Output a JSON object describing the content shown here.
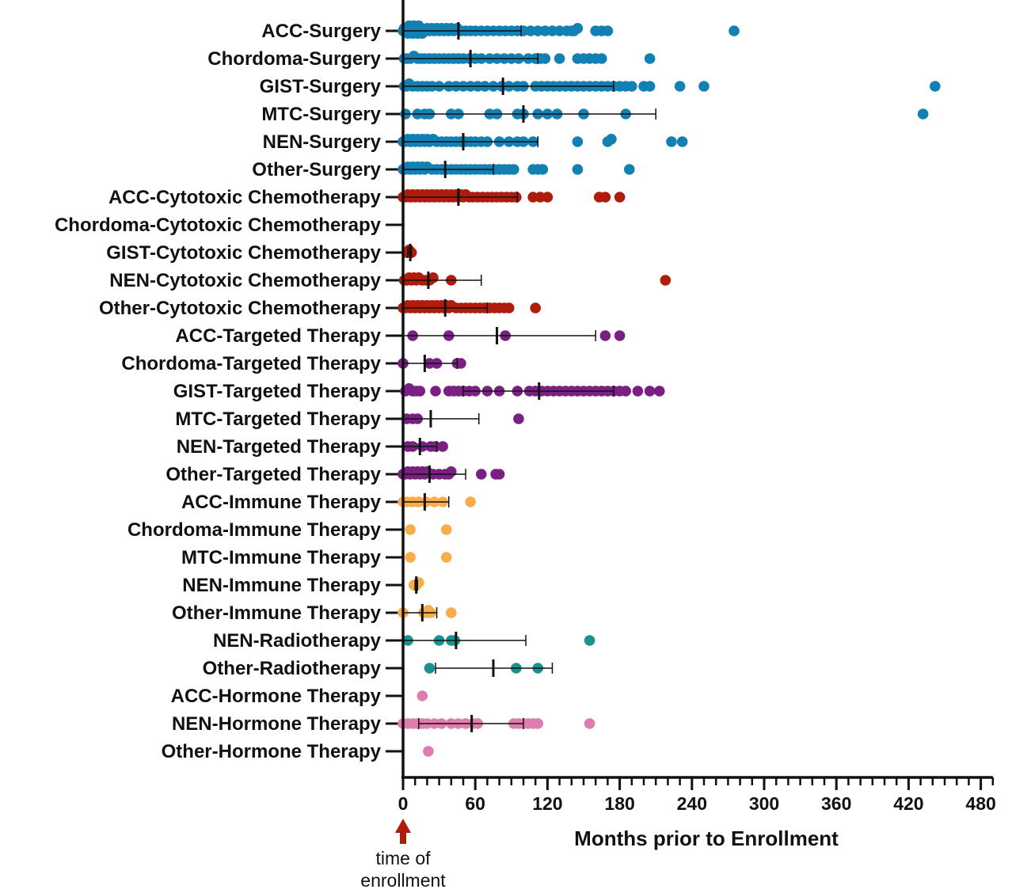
{
  "chart_data": {
    "type": "scatter",
    "subtype": "horizontal-dot-plot-with-median-and-iqr",
    "xlabel": "Months prior to Enrollment",
    "xlim": [
      0,
      490
    ],
    "xticks": [
      0,
      60,
      120,
      180,
      240,
      300,
      360,
      420,
      480
    ],
    "xticks_minor_step": 10,
    "grid": false,
    "legend": "none",
    "annotation": {
      "text_line1": "time of",
      "text_line2": "enrollment",
      "x": 0,
      "color": "#b01c0c"
    },
    "colors": {
      "Surgery": "#1380b4",
      "Cytotoxic Chemotherapy": "#b01c0c",
      "Targeted Therapy": "#7b2083",
      "Immune Therapy": "#f9ad4a",
      "Radiotherapy": "#1a9390",
      "Hormone Therapy": "#dd7eaf"
    },
    "series": [
      {
        "name": "ACC-Surgery",
        "therapy": "Surgery",
        "median": 46,
        "q1": 0,
        "q3": 98,
        "values": [
          0,
          1,
          2,
          3,
          4,
          5,
          6,
          7,
          8,
          9,
          10,
          11,
          12,
          13,
          14,
          15,
          16,
          18,
          20,
          22,
          24,
          26,
          28,
          30,
          32,
          34,
          36,
          38,
          40,
          42,
          45,
          48,
          52,
          56,
          60,
          65,
          70,
          75,
          80,
          85,
          90,
          95,
          100,
          106,
          112,
          118,
          124,
          130,
          136,
          140,
          142,
          145,
          160,
          165,
          170,
          275
        ]
      },
      {
        "name": "Chordoma-Surgery",
        "therapy": "Surgery",
        "median": 56,
        "q1": 0,
        "q3": 112,
        "values": [
          1,
          3,
          6,
          9,
          12,
          15,
          18,
          22,
          26,
          30,
          34,
          38,
          42,
          46,
          50,
          55,
          60,
          65,
          72,
          78,
          84,
          90,
          96,
          104,
          110,
          114,
          118,
          130,
          145,
          150,
          155,
          160,
          165,
          205
        ]
      },
      {
        "name": "GIST-Surgery",
        "therapy": "Surgery",
        "median": 83,
        "q1": 0,
        "q3": 175,
        "values": [
          1,
          3,
          5,
          8,
          12,
          16,
          20,
          24,
          30,
          38,
          44,
          50,
          56,
          62,
          68,
          75,
          82,
          88,
          95,
          100,
          110,
          115,
          120,
          125,
          130,
          135,
          140,
          145,
          150,
          155,
          160,
          165,
          170,
          175,
          180,
          185,
          190,
          200,
          205,
          230,
          250,
          442
        ]
      },
      {
        "name": "MTC-Surgery",
        "therapy": "Surgery",
        "median": 100,
        "q1": 0,
        "q3": 210,
        "values": [
          2,
          12,
          18,
          22,
          40,
          46,
          72,
          78,
          95,
          100,
          112,
          120,
          128,
          150,
          185,
          432
        ]
      },
      {
        "name": "NEN-Surgery",
        "therapy": "Surgery",
        "median": 50,
        "q1": 0,
        "q3": 112,
        "values": [
          0,
          2,
          4,
          6,
          8,
          10,
          12,
          14,
          16,
          18,
          20,
          22,
          25,
          28,
          32,
          36,
          40,
          44,
          48,
          52,
          56,
          60,
          65,
          70,
          80,
          88,
          95,
          100,
          108,
          145,
          170,
          173,
          223,
          232
        ]
      },
      {
        "name": "Other-Surgery",
        "therapy": "Surgery",
        "median": 35,
        "q1": 0,
        "q3": 75,
        "values": [
          0,
          2,
          4,
          6,
          8,
          10,
          12,
          14,
          16,
          18,
          20,
          24,
          28,
          32,
          36,
          40,
          44,
          48,
          52,
          56,
          60,
          64,
          68,
          72,
          76,
          80,
          84,
          88,
          92,
          108,
          112,
          116,
          145,
          188
        ]
      },
      {
        "name": "ACC-Cytotoxic Chemotherapy",
        "therapy": "Cytotoxic Chemotherapy",
        "median": 46,
        "q1": 0,
        "q3": 95,
        "values": [
          0,
          2,
          4,
          6,
          8,
          10,
          12,
          14,
          16,
          18,
          20,
          22,
          24,
          26,
          28,
          30,
          32,
          34,
          36,
          38,
          40,
          42,
          44,
          46,
          48,
          50,
          52,
          55,
          58,
          62,
          66,
          70,
          74,
          78,
          82,
          86,
          90,
          94,
          108,
          114,
          120,
          163,
          168,
          180
        ]
      },
      {
        "name": "Chordoma-Cytotoxic Chemotherapy",
        "therapy": "Cytotoxic Chemotherapy",
        "values": []
      },
      {
        "name": "GIST-Cytotoxic Chemotherapy",
        "therapy": "Cytotoxic Chemotherapy",
        "median": 6,
        "q1": 4,
        "q3": 7,
        "values": [
          3,
          5,
          7
        ]
      },
      {
        "name": "NEN-Cytotoxic Chemotherapy",
        "therapy": "Cytotoxic Chemotherapy",
        "median": 21,
        "q1": 0,
        "q3": 65,
        "values": [
          1,
          3,
          5,
          7,
          9,
          11,
          13,
          16,
          19,
          22,
          25,
          40,
          218
        ]
      },
      {
        "name": "Other-Cytotoxic Chemotherapy",
        "therapy": "Cytotoxic Chemotherapy",
        "median": 35,
        "q1": 0,
        "q3": 70,
        "values": [
          0,
          2,
          4,
          6,
          8,
          10,
          12,
          14,
          16,
          18,
          20,
          22,
          24,
          26,
          28,
          30,
          32,
          34,
          36,
          38,
          40,
          44,
          48,
          52,
          56,
          60,
          64,
          68,
          72,
          76,
          80,
          84,
          88,
          110
        ]
      },
      {
        "name": "ACC-Targeted Therapy",
        "therapy": "Targeted Therapy",
        "median": 78,
        "q1": 0,
        "q3": 160,
        "values": [
          8,
          38,
          85,
          168,
          180
        ]
      },
      {
        "name": "Chordoma-Targeted Therapy",
        "therapy": "Targeted Therapy",
        "median": 18,
        "q1": 0,
        "q3": 45,
        "values": [
          0,
          22,
          28,
          45,
          48
        ]
      },
      {
        "name": "GIST-Targeted Therapy",
        "therapy": "Targeted Therapy",
        "median": 113,
        "q1": 50,
        "q3": 175,
        "values": [
          2,
          5,
          8,
          11,
          14,
          27,
          38,
          42,
          46,
          50,
          55,
          60,
          70,
          80,
          95,
          105,
          110,
          115,
          120,
          125,
          130,
          135,
          140,
          145,
          150,
          155,
          160,
          165,
          170,
          175,
          180,
          185,
          195,
          205,
          213
        ]
      },
      {
        "name": "MTC-Targeted Therapy",
        "therapy": "Targeted Therapy",
        "median": 23,
        "q1": 0,
        "q3": 63,
        "values": [
          3,
          8,
          12,
          96
        ]
      },
      {
        "name": "NEN-Targeted Therapy",
        "therapy": "Targeted Therapy",
        "median": 14,
        "q1": 0,
        "q3": 28,
        "values": [
          4,
          8,
          16,
          23,
          27,
          33
        ]
      },
      {
        "name": "Other-Targeted Therapy",
        "therapy": "Targeted Therapy",
        "median": 22,
        "q1": 0,
        "q3": 52,
        "values": [
          0,
          2,
          4,
          6,
          8,
          10,
          12,
          14,
          16,
          18,
          20,
          25,
          30,
          35,
          38,
          40,
          65,
          77,
          80
        ]
      },
      {
        "name": "ACC-Immune Therapy",
        "therapy": "Immune Therapy",
        "median": 18,
        "q1": 0,
        "q3": 38,
        "values": [
          0,
          3,
          8,
          13,
          19,
          26,
          33,
          56
        ]
      },
      {
        "name": "Chordoma-Immune Therapy",
        "therapy": "Immune Therapy",
        "values": [
          6,
          36
        ]
      },
      {
        "name": "MTC-Immune Therapy",
        "therapy": "Immune Therapy",
        "values": [
          6,
          36
        ]
      },
      {
        "name": "NEN-Immune Therapy",
        "therapy": "Immune Therapy",
        "median": 11,
        "q1": 10,
        "q3": 12,
        "values": [
          9,
          11,
          13
        ]
      },
      {
        "name": "Other-Immune Therapy",
        "therapy": "Immune Therapy",
        "median": 16,
        "q1": 0,
        "q3": 28,
        "values": [
          0,
          17,
          19,
          21,
          23,
          40
        ]
      },
      {
        "name": "NEN-Radiotherapy",
        "therapy": "Radiotherapy",
        "median": 44,
        "q1": 0,
        "q3": 102,
        "values": [
          4,
          30,
          40,
          43,
          155
        ]
      },
      {
        "name": "Other-Radiotherapy",
        "therapy": "Radiotherapy",
        "median": 75,
        "q1": 27,
        "q3": 124,
        "values": [
          22,
          94,
          112
        ]
      },
      {
        "name": "ACC-Hormone Therapy",
        "therapy": "Hormone Therapy",
        "values": [
          16
        ]
      },
      {
        "name": "NEN-Hormone Therapy",
        "therapy": "Hormone Therapy",
        "median": 57,
        "q1": 13,
        "q3": 100,
        "values": [
          0,
          4,
          8,
          12,
          16,
          20,
          26,
          32,
          40,
          46,
          52,
          58,
          62,
          92,
          96,
          100,
          104,
          108,
          112,
          155
        ]
      },
      {
        "name": "Other-Hormone Therapy",
        "therapy": "Hormone Therapy",
        "values": [
          21
        ]
      }
    ]
  }
}
